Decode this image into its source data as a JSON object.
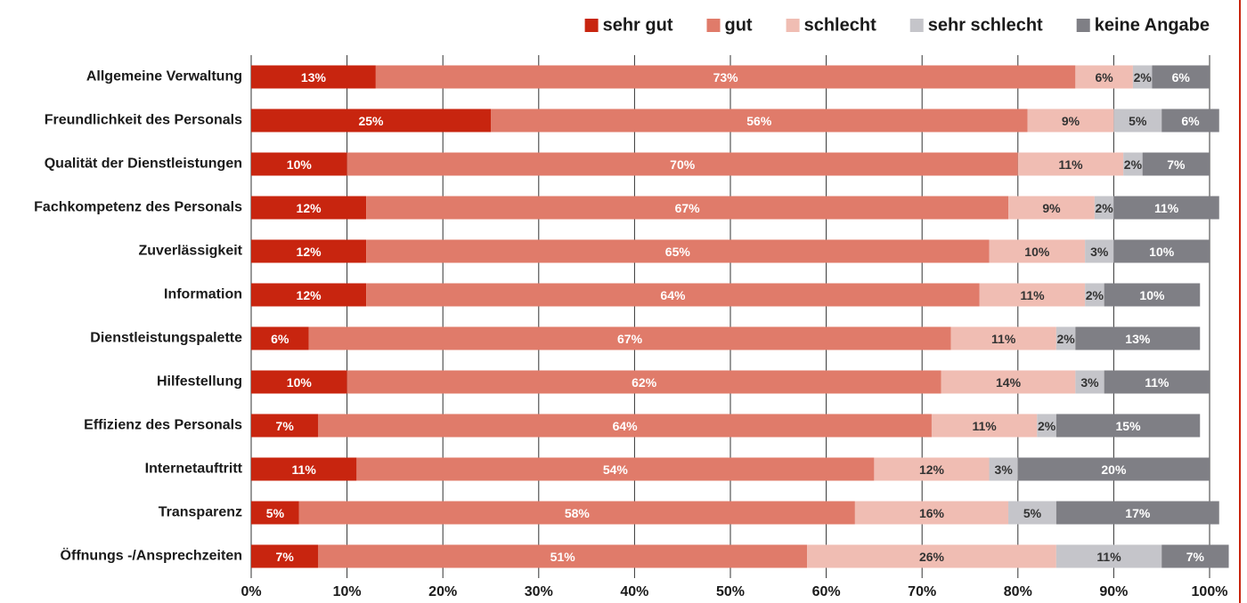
{
  "chart_data": {
    "type": "stacked-bar-horizontal",
    "categories": [
      "Allgemeine Verwaltung",
      "Freundlichkeit des Personals",
      "Qualität der Dienstleistungen",
      "Fachkompetenz des Personals",
      "Zuverlässigkeit",
      "Information",
      "Dienstleistungspalette",
      "Hilfestellung",
      "Effizienz des Personals",
      "Internetauftritt",
      "Transparenz",
      "Öffnungs -/Ansprechzeiten"
    ],
    "series": [
      {
        "name": "sehr gut",
        "color": "#c8250f",
        "values": [
          13,
          25,
          10,
          12,
          12,
          12,
          6,
          10,
          7,
          11,
          5,
          7
        ],
        "value_labels": [
          "13%",
          "25%",
          "10%",
          "12%",
          "12%",
          "12%",
          "6%",
          "10%",
          "7%",
          "11%",
          "5%",
          "7%"
        ]
      },
      {
        "name": "gut",
        "color": "#e07b6a",
        "values": [
          73,
          56,
          70,
          67,
          65,
          64,
          67,
          62,
          64,
          54,
          58,
          51
        ],
        "value_labels": [
          "73%",
          "56%",
          "70%",
          "67%",
          "65%",
          "64%",
          "67%",
          "62%",
          "64%",
          "54%",
          "58%",
          "51%"
        ]
      },
      {
        "name": "schlecht",
        "color": "#f0bdb3",
        "values": [
          6,
          9,
          11,
          9,
          10,
          11,
          11,
          14,
          11,
          12,
          16,
          26
        ],
        "value_labels": [
          "6%",
          "9%",
          "11%",
          "9%",
          "10%",
          "11%",
          "11%",
          "14%",
          "11%",
          "12%",
          "16%",
          "26%"
        ]
      },
      {
        "name": "sehr schlecht",
        "color": "#c5c5ca",
        "values": [
          2,
          5,
          2,
          2,
          3,
          2,
          2,
          3,
          2,
          3,
          5,
          11
        ],
        "value_labels": [
          "2%",
          "5%",
          "2%",
          "2%",
          "3%",
          "2%",
          "2%",
          "3%",
          "2%",
          "3%",
          "5%",
          "11%"
        ]
      },
      {
        "name": "keine Angabe",
        "color": "#7f7f85",
        "values": [
          6,
          6,
          7,
          11,
          10,
          10,
          13,
          11,
          15,
          20,
          17,
          7
        ],
        "value_labels": [
          "6%",
          "6%",
          "7%",
          "11%",
          "10%",
          "10%",
          "13%",
          "11%",
          "15%",
          "20%",
          "17%",
          "7%"
        ]
      }
    ],
    "xlim": [
      0,
      100
    ],
    "xticks": [
      {
        "value": 0,
        "label": "0%"
      },
      {
        "value": 10,
        "label": "10%"
      },
      {
        "value": 20,
        "label": "20%"
      },
      {
        "value": 30,
        "label": "30%"
      },
      {
        "value": 40,
        "label": "40%"
      },
      {
        "value": 50,
        "label": "50%"
      },
      {
        "value": 60,
        "label": "60%"
      },
      {
        "value": 70,
        "label": "70%"
      },
      {
        "value": 80,
        "label": "80%"
      },
      {
        "value": 90,
        "label": "90%"
      },
      {
        "value": 100,
        "label": "100%"
      }
    ],
    "grid": true,
    "legend": "top-right"
  }
}
